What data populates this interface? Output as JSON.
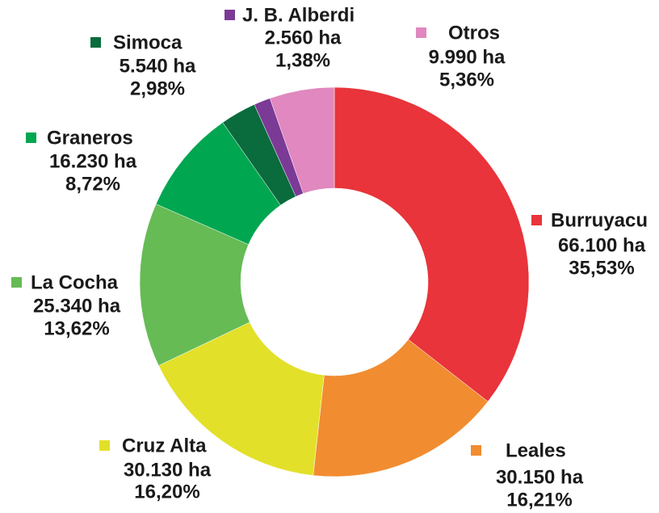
{
  "chart_data": {
    "type": "donut",
    "categories": [
      "Burruyacu",
      "Leales",
      "Cruz Alta",
      "La Cocha",
      "Graneros",
      "Simoca",
      "J. B. Alberdi",
      "Otros"
    ],
    "values": [
      66100,
      30150,
      30130,
      25340,
      16230,
      5540,
      2560,
      9990
    ],
    "value_labels": [
      "66.100 ha",
      "30.150 ha",
      "30.130 ha",
      "25.340 ha",
      "16.230 ha",
      "5.540 ha",
      "2.560 ha",
      "9.990 ha"
    ],
    "percentages": [
      35.53,
      16.21,
      16.2,
      13.62,
      8.72,
      2.98,
      1.38,
      5.36
    ],
    "percentage_labels": [
      "35,53%",
      "16,21%",
      "16,20%",
      "13,62%",
      "8,72%",
      "2,98%",
      "1,38%",
      "5,36%"
    ],
    "colors": [
      "#e8343a",
      "#f18c30",
      "#e3e02a",
      "#66bb55",
      "#00a650",
      "#0a6b3c",
      "#7b3a96",
      "#e088bf"
    ]
  }
}
